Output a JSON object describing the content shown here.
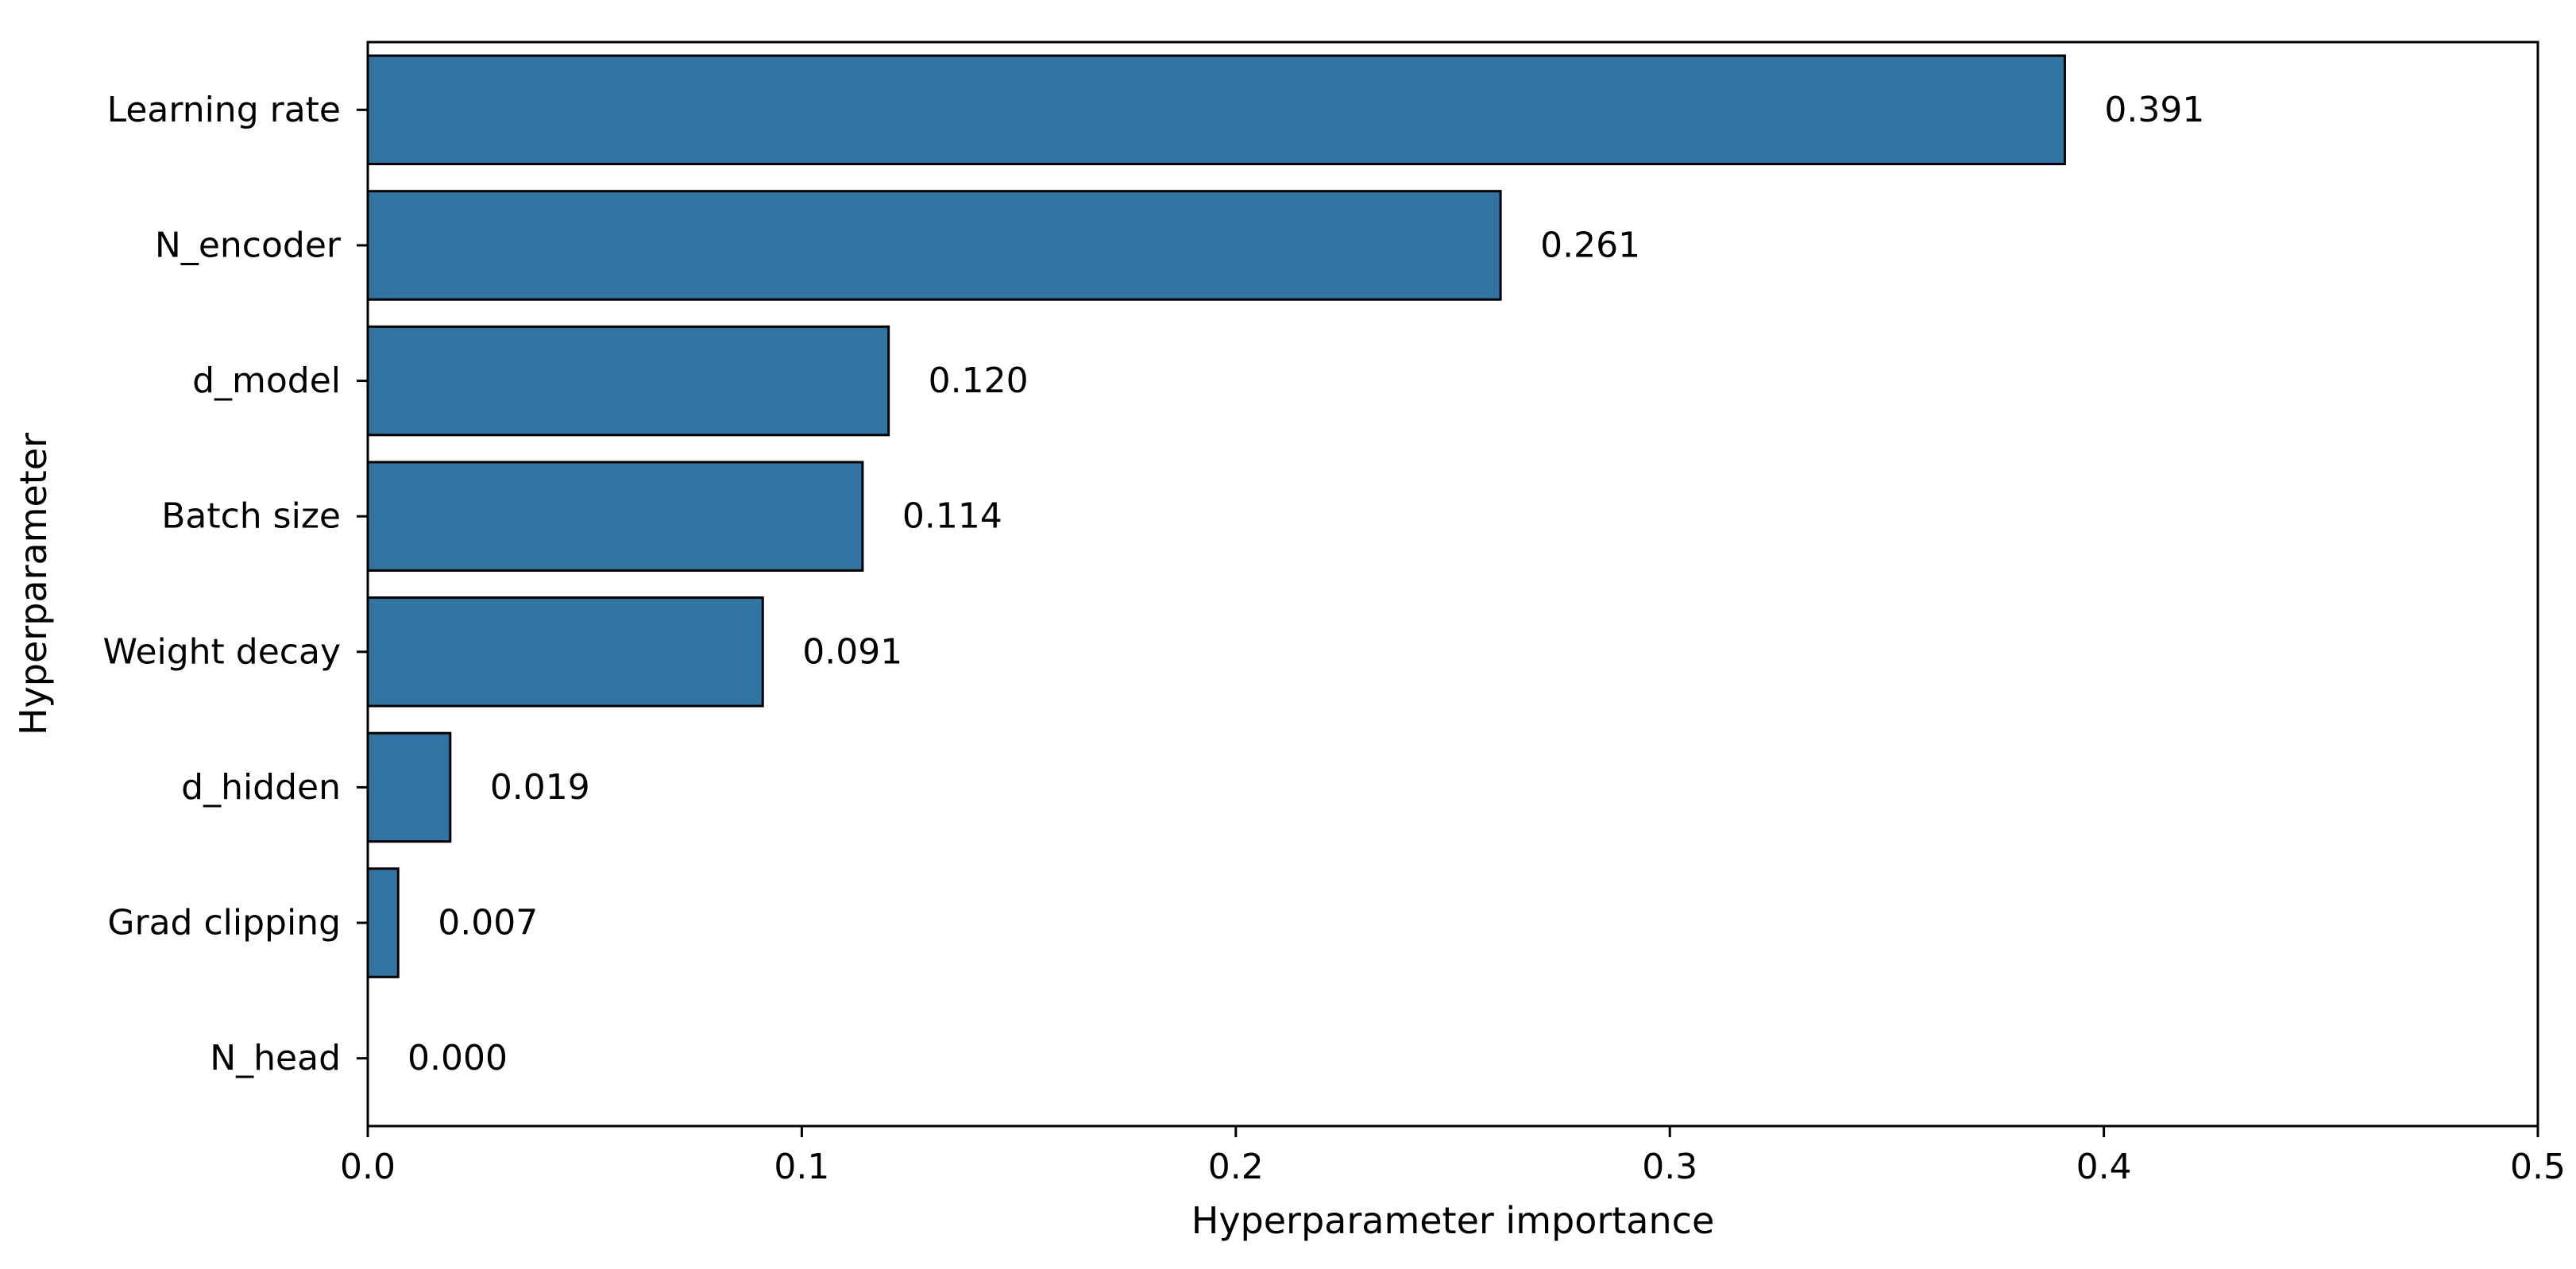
{
  "chart_data": {
    "type": "bar",
    "orientation": "horizontal",
    "title": "",
    "xlabel": "Hyperparameter importance",
    "ylabel": "Hyperparameter",
    "xlim": [
      0,
      0.5
    ],
    "xticks": [
      0.0,
      0.1,
      0.2,
      0.3,
      0.4,
      0.5
    ],
    "xtick_labels": [
      "0.0",
      "0.1",
      "0.2",
      "0.3",
      "0.4",
      "0.5"
    ],
    "grid": false,
    "bar_color": "#3274a1",
    "bar_edge_color": "#000000",
    "categories": [
      "Learning rate",
      "N_encoder",
      "d_model",
      "Batch size",
      "Weight decay",
      "d_hidden",
      "Grad clipping",
      "N_head"
    ],
    "values": [
      0.391,
      0.261,
      0.12,
      0.114,
      0.091,
      0.019,
      0.007,
      0.0
    ],
    "value_labels": [
      "0.391",
      "0.261",
      "0.120",
      "0.114",
      "0.091",
      "0.019",
      "0.007",
      "0.000"
    ]
  }
}
